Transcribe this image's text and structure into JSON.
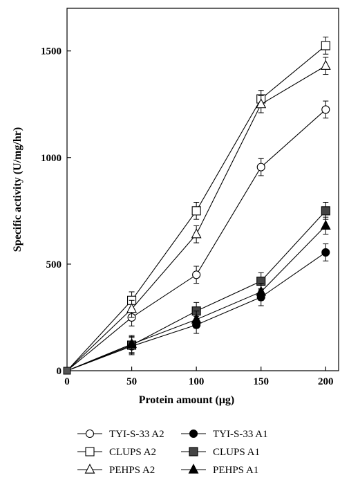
{
  "chart_data": {
    "type": "line",
    "x": [
      0,
      50,
      100,
      150,
      200
    ],
    "xlabel": "Protein amount (μg)",
    "ylabel": "Specific activity (U/mg/hr)",
    "xlim": [
      0,
      210
    ],
    "ylim": [
      0,
      1700
    ],
    "xticks": [
      "0",
      "50",
      "100",
      "150",
      "200"
    ],
    "yticks": [
      "0",
      "500",
      "1000",
      "1500"
    ],
    "grid": false,
    "legend_position": "bottom",
    "series": [
      {
        "name": "TYI-S-33 A2",
        "marker": "circle-open",
        "values": [
          0,
          250,
          450,
          955,
          1225
        ],
        "errors": [
          0,
          40,
          40,
          40,
          40
        ]
      },
      {
        "name": "CLUPS A2",
        "marker": "square-open",
        "values": [
          0,
          330,
          750,
          1275,
          1525
        ],
        "errors": [
          0,
          40,
          40,
          40,
          40
        ]
      },
      {
        "name": "PEHPS A2",
        "marker": "triangle-open",
        "values": [
          0,
          290,
          640,
          1250,
          1430
        ],
        "errors": [
          0,
          40,
          40,
          40,
          40
        ]
      },
      {
        "name": "TYI-S-33 A1",
        "marker": "circle-filled",
        "values": [
          0,
          115,
          215,
          345,
          555
        ],
        "errors": [
          0,
          40,
          40,
          40,
          40
        ]
      },
      {
        "name": "CLUPS A1",
        "marker": "square-filled",
        "values": [
          0,
          120,
          280,
          420,
          750
        ],
        "errors": [
          0,
          40,
          40,
          40,
          40
        ]
      },
      {
        "name": "PEHPS A1",
        "marker": "triangle-filled",
        "values": [
          0,
          125,
          240,
          370,
          680
        ],
        "errors": [
          0,
          40,
          40,
          40,
          40
        ]
      }
    ]
  }
}
